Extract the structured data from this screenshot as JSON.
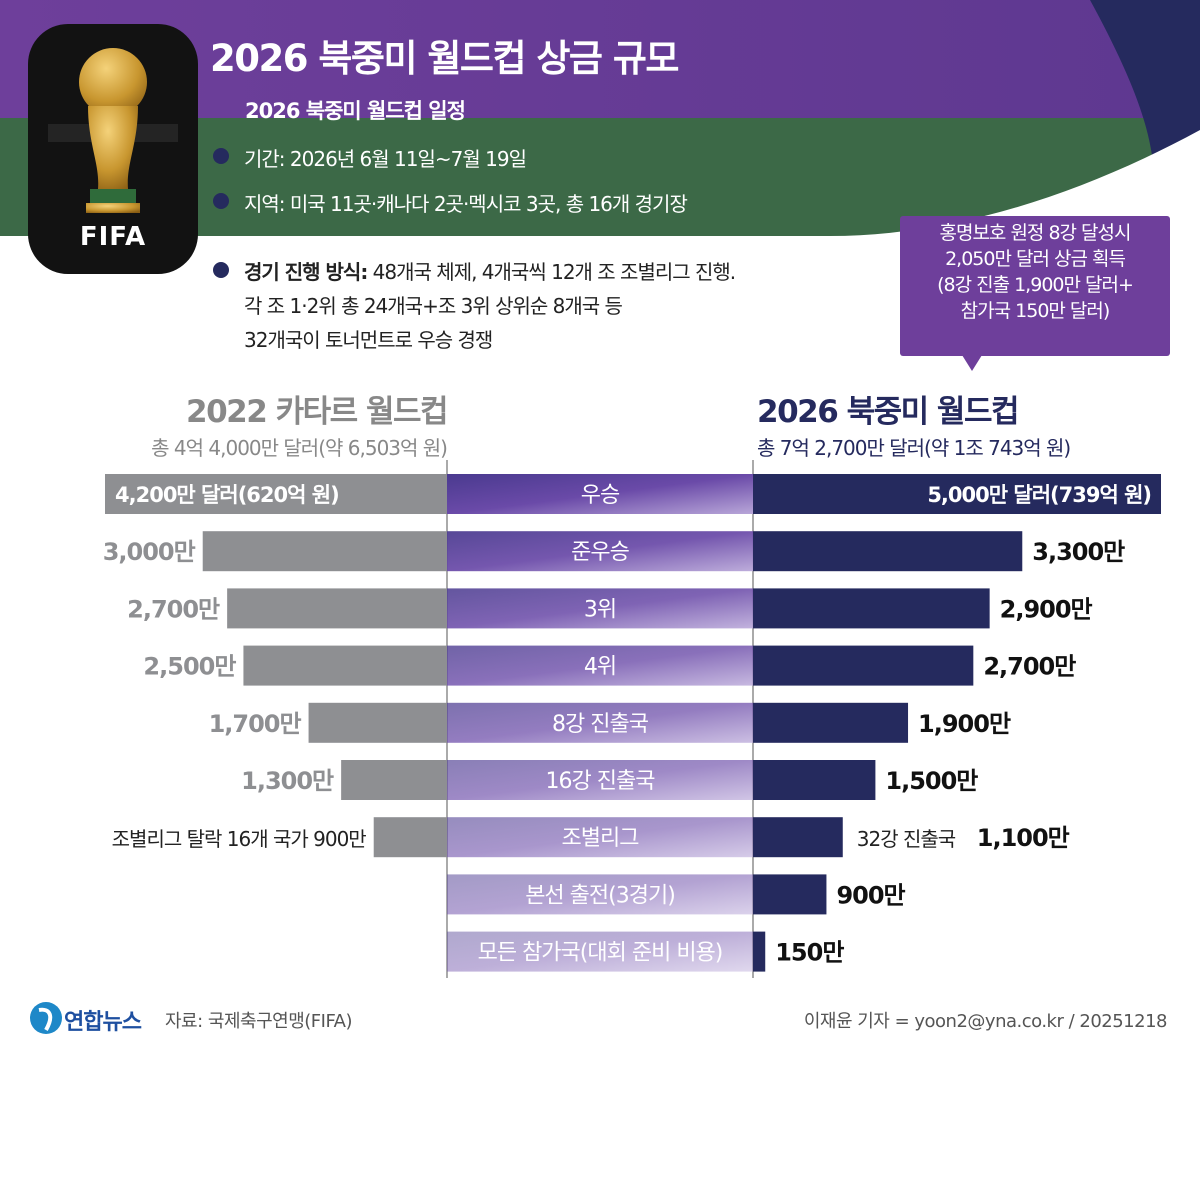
{
  "title": "2026 북중미 월드컵 상금 규모",
  "schedule": {
    "heading": "2026 북중미 월드컵 일정",
    "period": "기간: 2026년 6월 11일~7월 19일",
    "venues": "지역: 미국 11곳·캐나다 2곳·멕시코 3곳, 총  16개 경기장",
    "format_label": "경기 진행 방식:",
    "format_line1": " 48개국 체제, 4개국씩 12개 조 조별리그 진행.",
    "format_line2": "각 조 1·2위 총 24개국+조 3위 상위순 8개국 등",
    "format_line3": "32개국이 토너먼트로 우승 경쟁"
  },
  "logo": {
    "text": "FIFA"
  },
  "callout": {
    "lines": [
      "홍명보호 원정 8강 달성시",
      "2,050만 달러 상금 획득",
      "(8강 진출 1,900만 달러+",
      "참가국 150만 달러)"
    ]
  },
  "colors": {
    "purple": "#6e3f9b",
    "green": "#3c6947",
    "navy": "#252a5e",
    "gray": "#8e8f92",
    "black": "#111111"
  },
  "chart_data": {
    "type": "bar",
    "title": "2026 북중미 월드컵 상금 규모",
    "units": "만 달러",
    "categories": [
      "우승",
      "준우승",
      "3위",
      "4위",
      "8강 진출국",
      "16강 진출국",
      "조별리그",
      "본선 출전(3경기)",
      "모든 참가국(대회 준비 비용)"
    ],
    "left_series": {
      "name": "2022 카타르 월드컵",
      "total": "총 4억 4,000만 달러(약 6,503억 원)",
      "values": [
        4200,
        3000,
        2700,
        2500,
        1700,
        1300,
        900,
        null,
        null
      ],
      "labels": [
        "4,200만 달러(620억 원)",
        "3,000만",
        "2,700만",
        "2,500만",
        "1,700만",
        "1,300만",
        "조별리그 탈락 16개 국가 900만",
        "",
        ""
      ]
    },
    "right_series": {
      "name": "2026 북중미 월드컵",
      "total": "총 7억 2,700만 달러(약 1조 743억 원)",
      "values": [
        5000,
        3300,
        2900,
        2700,
        1900,
        1500,
        1100,
        900,
        150
      ],
      "labels": [
        "5,000만 달러(739억 원)",
        "3,300만",
        "2,900만",
        "2,700만",
        "1,900만",
        "1,500만",
        "1,100만",
        "900만",
        "150만"
      ],
      "label_prefixes": [
        "",
        "",
        "",
        "",
        "",
        "",
        "32강 진출국 ",
        "",
        ""
      ]
    }
  },
  "footer": {
    "brand": "연합뉴스",
    "source": "자료: 국제축구연맹(FIFA)",
    "credit": "이재윤 기자 = yoon2@yna.co.kr / 20251218"
  }
}
